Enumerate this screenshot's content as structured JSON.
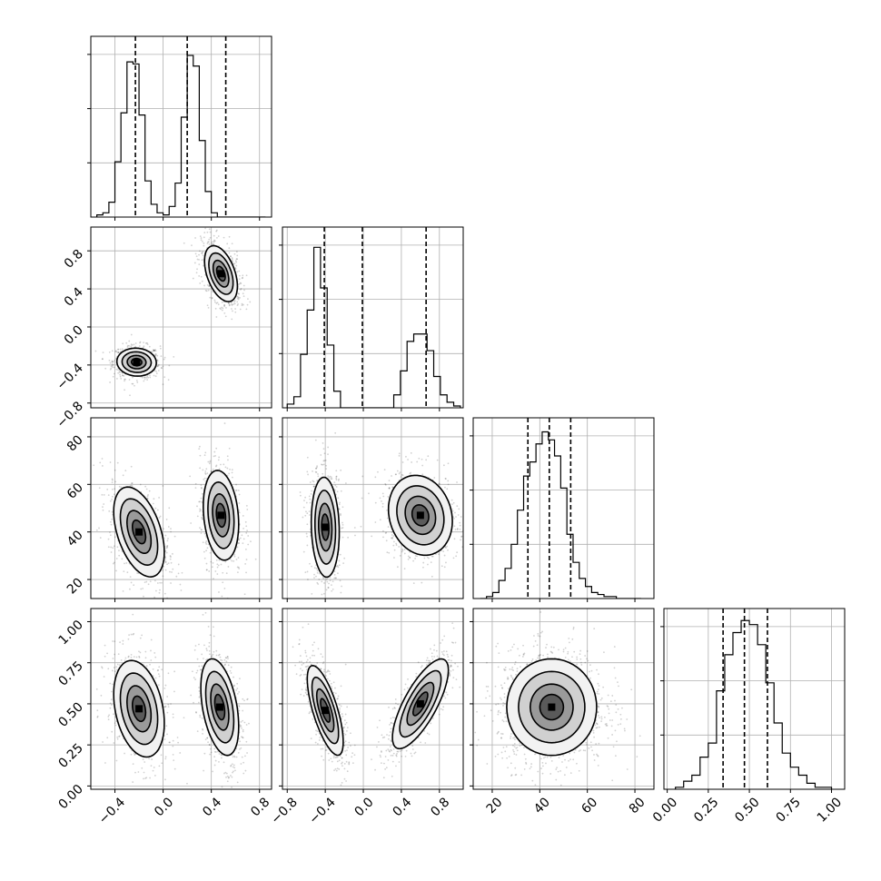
{
  "chart_data": {
    "type": "corner",
    "title": "",
    "grid": true,
    "legend": "none",
    "colors": {
      "line": "#000000",
      "grid": "#b0b0b0",
      "scatter": "#000000",
      "fill_dark": "#000000",
      "fill_light": "#ffffff"
    },
    "params": [
      {
        "range": [
          -0.6,
          0.9
        ],
        "ticks": [
          -0.4,
          0.0,
          0.4,
          0.8
        ],
        "ticklabels": [
          "−0.4",
          "0.0",
          "0.4",
          "0.8"
        ]
      },
      {
        "range": [
          -0.85,
          1.05
        ],
        "ticks": [
          -0.8,
          -0.4,
          0.0,
          0.4,
          0.8
        ],
        "ticklabels": [
          "−0.8",
          "−0.4",
          "0.0",
          "0.4",
          "0.8"
        ]
      },
      {
        "range": [
          12,
          88
        ],
        "ticks": [
          20,
          40,
          60,
          80
        ],
        "ticklabels": [
          "20",
          "40",
          "60",
          "80"
        ]
      },
      {
        "range": [
          -0.02,
          1.08
        ],
        "ticks": [
          0.0,
          0.25,
          0.5,
          0.75,
          1.0
        ],
        "ticklabels": [
          "0.00",
          "0.25",
          "0.50",
          "0.75",
          "1.00"
        ]
      }
    ],
    "histograms": [
      {
        "param": 0,
        "edges": [
          -0.55,
          -0.5,
          -0.45,
          -0.4,
          -0.35,
          -0.3,
          -0.25,
          -0.2,
          -0.15,
          -0.1,
          -0.05,
          0.0,
          0.05,
          0.1,
          0.15,
          0.2,
          0.25,
          0.3,
          0.35,
          0.4,
          0.45,
          0.5,
          0.55,
          0.6,
          0.65,
          0.7,
          0.75,
          0.8,
          0.85
        ],
        "counts": [
          1,
          2,
          7,
          26,
          49,
          73,
          72,
          48,
          17,
          6,
          2,
          1,
          5,
          16,
          47,
          76,
          71,
          36,
          12,
          2,
          0,
          0,
          0,
          0,
          0,
          0,
          0,
          0
        ],
        "ymax": 85,
        "quantiles": [
          -0.23,
          0.2,
          0.52
        ]
      },
      {
        "param": 1,
        "edges": [
          -0.8,
          -0.73,
          -0.66,
          -0.59,
          -0.52,
          -0.45,
          -0.38,
          -0.31,
          -0.24,
          -0.17,
          -0.1,
          -0.03,
          0.04,
          0.11,
          0.18,
          0.25,
          0.32,
          0.39,
          0.46,
          0.53,
          0.6,
          0.67,
          0.74,
          0.81,
          0.88,
          0.95,
          1.02
        ],
        "counts": [
          2,
          6,
          29,
          53,
          87,
          65,
          34,
          9,
          0,
          0,
          0,
          0,
          0,
          0,
          0,
          0,
          7,
          20,
          36,
          40,
          40,
          31,
          17,
          7,
          3,
          1
        ],
        "ymax": 98,
        "quantiles": [
          -0.41,
          -0.01,
          0.66
        ]
      },
      {
        "param": 2,
        "edges": [
          15.0,
          17.6,
          20.2,
          22.8,
          25.4,
          28.0,
          30.6,
          33.2,
          35.8,
          38.4,
          41.0,
          43.6,
          46.2,
          48.8,
          51.4,
          54.0,
          56.6,
          59.2,
          61.8,
          64.4,
          67.0,
          69.6,
          72.2,
          74.8,
          77.4,
          80.0,
          82.6
        ],
        "counts": [
          0,
          1,
          3,
          9,
          15,
          27,
          44,
          61,
          68,
          77,
          83,
          79,
          71,
          55,
          32,
          18,
          10,
          6,
          3,
          2,
          1,
          1,
          0,
          0,
          0,
          0
        ],
        "ymax": 90,
        "quantiles": [
          35,
          44,
          53
        ]
      },
      {
        "param": 3,
        "edges": [
          0.05,
          0.1,
          0.15,
          0.2,
          0.25,
          0.3,
          0.35,
          0.4,
          0.45,
          0.5,
          0.55,
          0.6,
          0.65,
          0.7,
          0.75,
          0.8,
          0.85,
          0.9,
          0.95,
          1.0
        ],
        "counts": [
          1,
          4,
          7,
          16,
          23,
          49,
          67,
          78,
          84,
          82,
          72,
          53,
          33,
          18,
          11,
          7,
          3,
          1,
          1
        ],
        "ymax": 90,
        "quantiles": [
          0.34,
          0.47,
          0.61
        ]
      }
    ],
    "pairs": [
      {
        "x": 0,
        "y": 1,
        "clusters": [
          {
            "cx": -0.22,
            "cy": -0.37,
            "sx": 0.078,
            "sy": 0.07,
            "rho": -0.05,
            "n": 700
          },
          {
            "cx": 0.48,
            "cy": 0.56,
            "sx": 0.065,
            "sy": 0.14,
            "rho": -0.45,
            "n": 700
          }
        ]
      },
      {
        "x": 0,
        "y": 2,
        "clusters": [
          {
            "cx": -0.2,
            "cy": 40,
            "sx": 0.1,
            "sy": 9,
            "rho": -0.45,
            "n": 700
          },
          {
            "cx": 0.48,
            "cy": 47,
            "sx": 0.07,
            "sy": 9,
            "rho": -0.2,
            "n": 700
          }
        ]
      },
      {
        "x": 0,
        "y": 3,
        "clusters": [
          {
            "cx": -0.2,
            "cy": 0.47,
            "sx": 0.1,
            "sy": 0.14,
            "rho": -0.3,
            "n": 700
          },
          {
            "cx": 0.47,
            "cy": 0.48,
            "sx": 0.075,
            "sy": 0.14,
            "rho": -0.4,
            "n": 700
          }
        ]
      },
      {
        "x": 1,
        "y": 2,
        "clusters": [
          {
            "cx": -0.4,
            "cy": 42,
            "sx": 0.07,
            "sy": 10,
            "rho": -0.1,
            "n": 700
          },
          {
            "cx": 0.6,
            "cy": 47,
            "sx": 0.16,
            "sy": 8,
            "rho": -0.15,
            "n": 700
          }
        ]
      },
      {
        "x": 1,
        "y": 3,
        "clusters": [
          {
            "cx": -0.4,
            "cy": 0.46,
            "sx": 0.09,
            "sy": 0.13,
            "rho": -0.7,
            "n": 700
          },
          {
            "cx": 0.6,
            "cy": 0.5,
            "sx": 0.14,
            "sy": 0.13,
            "rho": 0.75,
            "n": 700
          }
        ]
      },
      {
        "x": 2,
        "y": 3,
        "clusters": [
          {
            "cx": 45,
            "cy": 0.48,
            "sx": 9,
            "sy": 0.14,
            "rho": 0.0,
            "n": 1400
          }
        ]
      }
    ]
  }
}
